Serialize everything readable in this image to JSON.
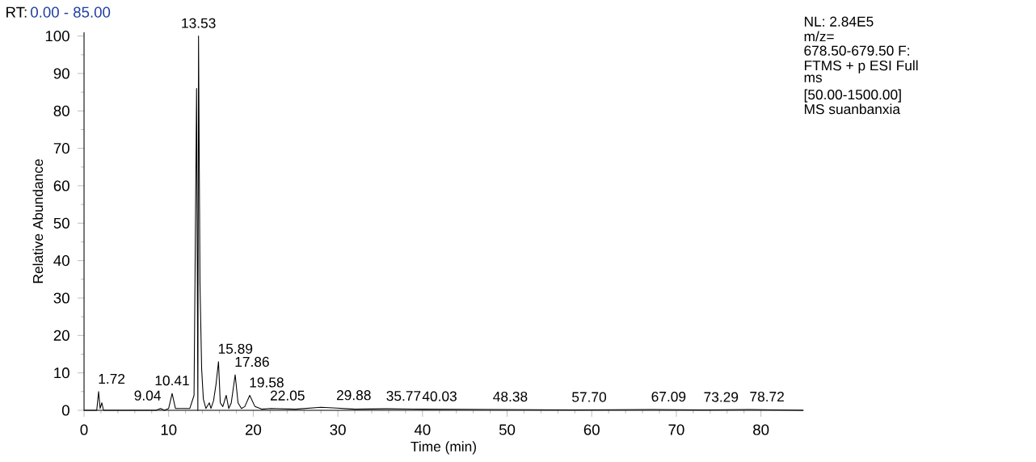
{
  "chart_data": {
    "type": "line",
    "title": "RT:",
    "subtitle": "0.00 - 85.00",
    "xlabel": "Time (min)",
    "ylabel": "Relative Abundance",
    "xlim": [
      0,
      85
    ],
    "ylim": [
      0,
      101
    ],
    "xticks": [
      0,
      10,
      20,
      30,
      40,
      50,
      60,
      70,
      80
    ],
    "yticks": [
      0,
      10,
      20,
      30,
      40,
      50,
      60,
      70,
      80,
      90,
      100
    ],
    "marker": "none",
    "line_style": "solid",
    "series": [
      {
        "color": "#000000",
        "x": [
          0,
          1.5,
          1.72,
          1.9,
          2.1,
          2.3,
          8.5,
          9.04,
          9.5,
          10.0,
          10.41,
          10.8,
          12.5,
          13.0,
          13.3,
          13.45,
          13.53,
          13.7,
          13.9,
          14.1,
          14.4,
          14.8,
          15.0,
          15.3,
          15.6,
          15.89,
          16.1,
          16.4,
          16.8,
          17.1,
          17.4,
          17.86,
          18.2,
          18.6,
          19.0,
          19.58,
          20.2,
          21,
          22.05,
          25,
          28,
          29.88,
          32,
          35.77,
          40.03,
          48.38,
          57.7,
          67.09,
          73.29,
          78.72,
          85
        ],
        "values": [
          0,
          0,
          5,
          0.5,
          2,
          0,
          0,
          0.5,
          0,
          0.5,
          4.5,
          0.5,
          0.5,
          4,
          86,
          0,
          100,
          34,
          11,
          3,
          0.5,
          2,
          0.5,
          2.5,
          7,
          13,
          2,
          1,
          4,
          0.5,
          2,
          9.5,
          2,
          0.5,
          1,
          4,
          1,
          0.3,
          0.5,
          0.3,
          0.8,
          0.6,
          0.3,
          0.4,
          0.3,
          0.2,
          0.1,
          0.2,
          0.1,
          0.2,
          0
        ]
      }
    ],
    "annotations": [
      {
        "text": "1.72",
        "x": 1.72,
        "y": 5
      },
      {
        "text": "9.04",
        "x": 9.04,
        "y": 0.5
      },
      {
        "text": "10.41",
        "x": 10.41,
        "y": 4.5
      },
      {
        "text": "13.53",
        "x": 13.53,
        "y": 100
      },
      {
        "text": "15.89",
        "x": 15.89,
        "y": 13
      },
      {
        "text": "17.86",
        "x": 17.86,
        "y": 9.5
      },
      {
        "text": "19.58",
        "x": 19.58,
        "y": 4
      },
      {
        "text": "22.05",
        "x": 22.05,
        "y": 0.5
      },
      {
        "text": "29.88",
        "x": 29.88,
        "y": 0.6
      },
      {
        "text": "35.77",
        "x": 35.77,
        "y": 0.4
      },
      {
        "text": "40.03",
        "x": 40.03,
        "y": 0.3
      },
      {
        "text": "48.38",
        "x": 48.38,
        "y": 0.2
      },
      {
        "text": "57.70",
        "x": 57.7,
        "y": 0.1
      },
      {
        "text": "67.09",
        "x": 67.09,
        "y": 0.2
      },
      {
        "text": "73.29",
        "x": 73.29,
        "y": 0.1
      },
      {
        "text": "78.72",
        "x": 78.72,
        "y": 0.2
      },
      "NL: 2.84E5",
      "m/z=",
      "678.50-679.50 F:",
      "FTMS + p ESI Full",
      "ms",
      "[50.00-1500.00]",
      "MS suanbanxia"
    ]
  }
}
